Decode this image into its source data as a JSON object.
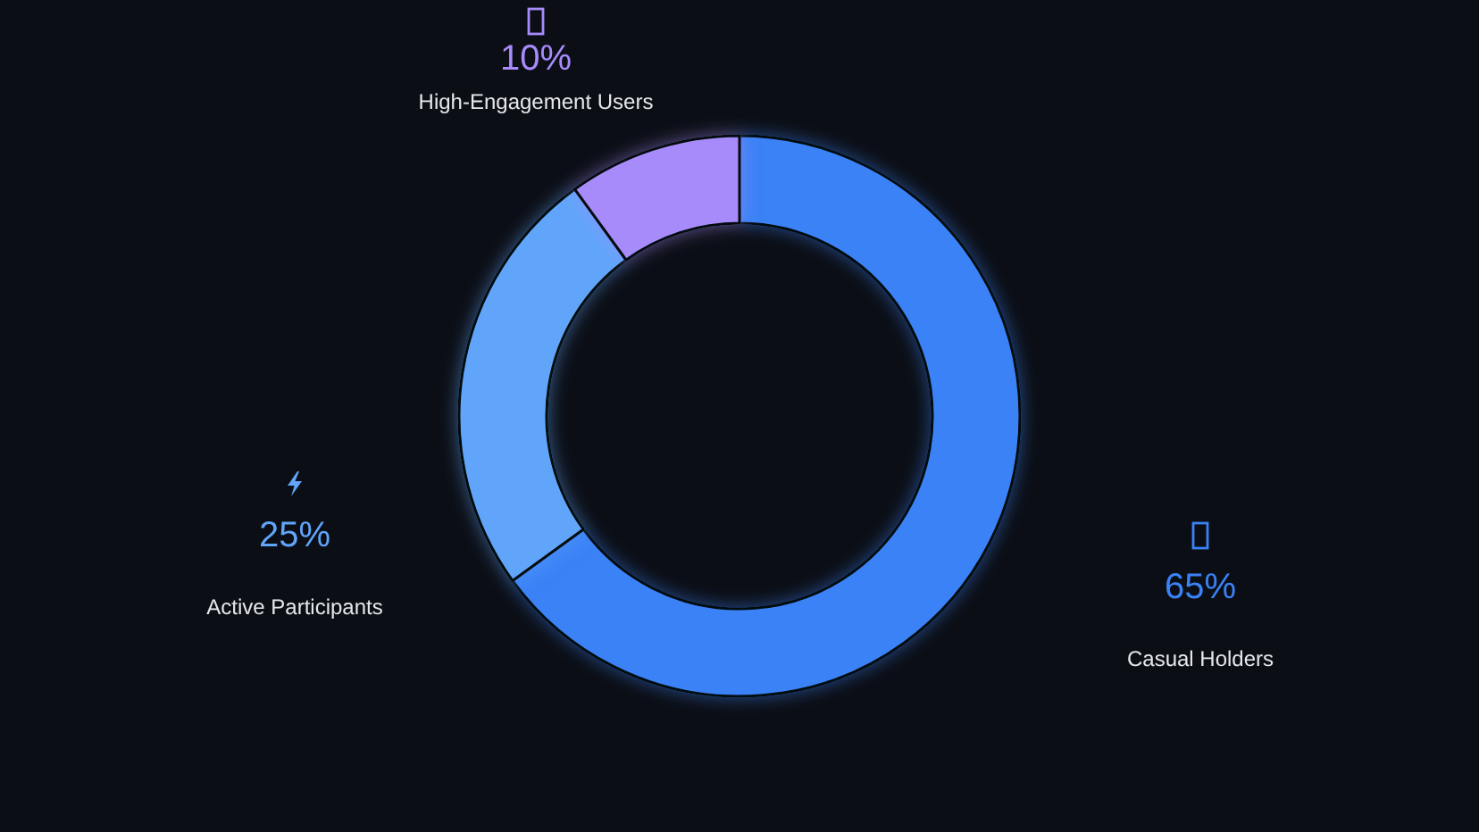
{
  "chart_data": {
    "type": "donut",
    "categories": [
      "Casual Holders",
      "Active Participants",
      "High-Engagement Users"
    ],
    "values": [
      65,
      25,
      10
    ],
    "colors": [
      "#3b82f6",
      "#60a5fa",
      "#a78bfa"
    ],
    "value_labels": [
      "65%",
      "25%",
      "10%"
    ]
  }
}
